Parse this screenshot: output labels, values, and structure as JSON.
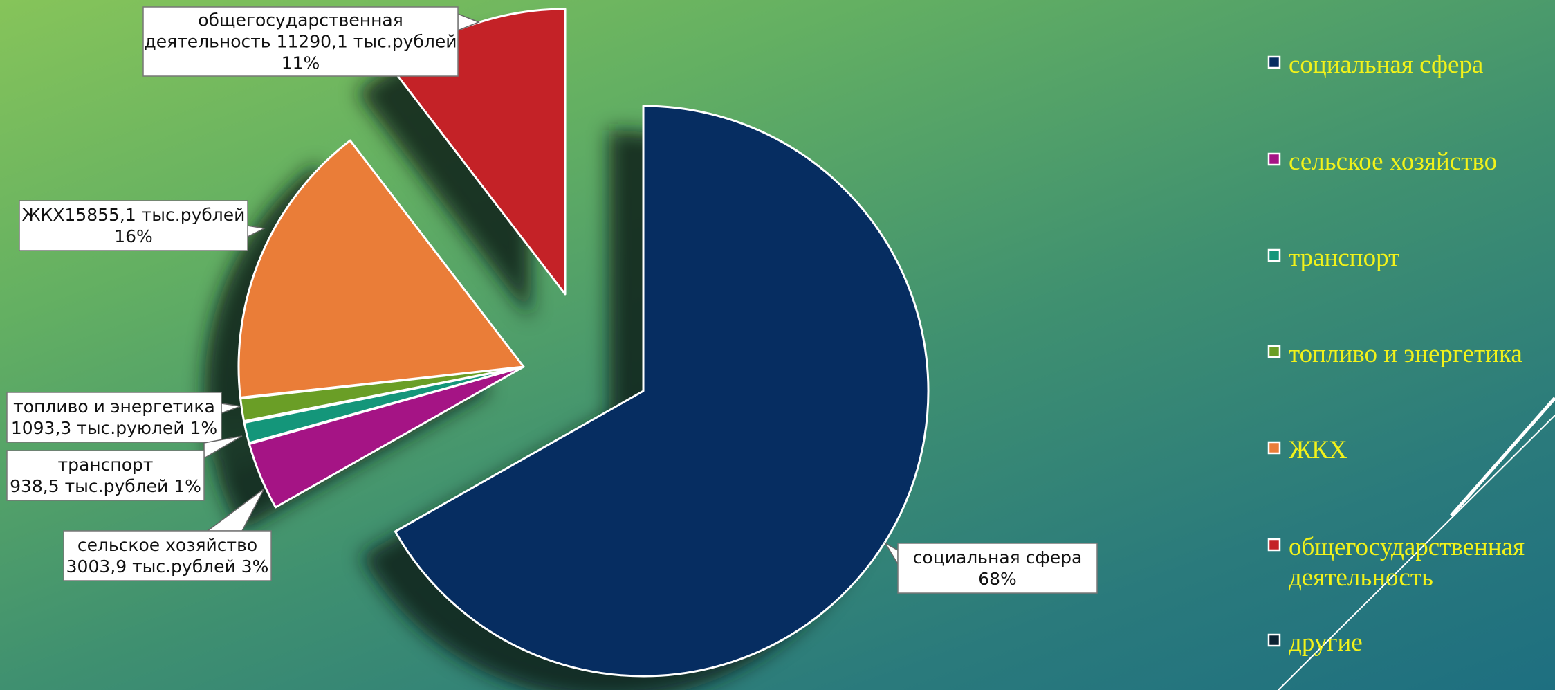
{
  "chart_data": {
    "type": "pie",
    "title": "",
    "exploded": true,
    "legend_position": "right",
    "slices": [
      {
        "key": "social",
        "name": "социальная сфера",
        "percent": 68,
        "color": "#062d61",
        "label_lines": [
          "социальная сфера",
          "68%"
        ]
      },
      {
        "key": "agri",
        "name": "сельское хозяйство",
        "value": 3003.9,
        "percent": 3,
        "color": "#a51485",
        "label_lines": [
          "сельское хозяйство",
          "3003,9 тыс.рублей 3%"
        ]
      },
      {
        "key": "transport",
        "name": "транспорт",
        "value": 938.5,
        "percent": 1,
        "color": "#14967a",
        "label_lines": [
          "транспорт",
          "938,5 тыс.рублей 1%"
        ]
      },
      {
        "key": "fuel",
        "name": "топливо и энергетика",
        "value": 1093.3,
        "percent": 1,
        "color": "#6a9e26",
        "label_lines": [
          "топливо и энергетика",
          "1093,3 тыс.руюлей 1%"
        ]
      },
      {
        "key": "housing",
        "name": "ЖКХ",
        "value": 15855.1,
        "percent": 16,
        "color": "#ea7d38",
        "label_lines": [
          "ЖКХ15855,1 тыс.рублей",
          "16%"
        ]
      },
      {
        "key": "gov",
        "name": "общегосударственная деятельность",
        "value": 11290.1,
        "percent": 11,
        "color": "#c42227",
        "label_lines": [
          "общегосударственная",
          "деятельность 11290,1 тыс.рублей",
          "11%"
        ]
      },
      {
        "key": "other",
        "name": "другие",
        "percent": 0,
        "color": "#0c2233",
        "label_lines": []
      }
    ],
    "legend": [
      {
        "key": "social",
        "lines": [
          "социальная сфера"
        ],
        "color": "#062d61"
      },
      {
        "key": "agri",
        "lines": [
          "сельское хозяйство"
        ],
        "color": "#a51485"
      },
      {
        "key": "transport",
        "lines": [
          "транспорт"
        ],
        "color": "#14967a"
      },
      {
        "key": "fuel",
        "lines": [
          "топливо и энергетика"
        ],
        "color": "#6a9e26"
      },
      {
        "key": "housing",
        "lines": [
          "ЖКХ"
        ],
        "color": "#ea7d38"
      },
      {
        "key": "gov",
        "lines": [
          "общегосударственная",
          "деятельность"
        ],
        "color": "#c42227"
      },
      {
        "key": "other",
        "lines": [
          "другие"
        ],
        "color": "#0c2233"
      }
    ]
  }
}
